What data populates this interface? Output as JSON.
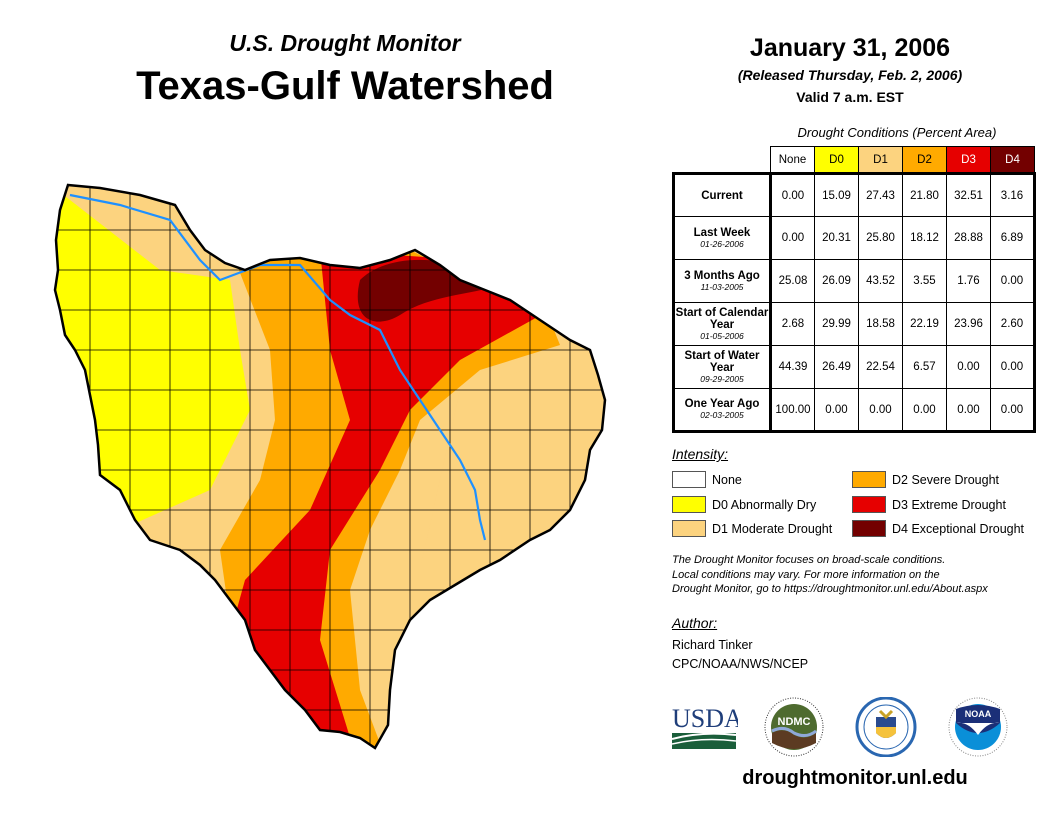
{
  "header": {
    "subtitle": "U.S. Drought Monitor",
    "title": "Texas-Gulf Watershed",
    "date": "January 31, 2006",
    "released": "(Released Thursday, Feb. 2, 2006)",
    "valid": "Valid 7 a.m. EST"
  },
  "table": {
    "caption": "Drought Conditions (Percent Area)",
    "columns": [
      {
        "label": "None",
        "color": "#ffffff",
        "text_color": "#000000"
      },
      {
        "label": "D0",
        "color": "#ffff00",
        "text_color": "#000000"
      },
      {
        "label": "D1",
        "color": "#fcd37f",
        "text_color": "#000000"
      },
      {
        "label": "D2",
        "color": "#ffaa00",
        "text_color": "#000000"
      },
      {
        "label": "D3",
        "color": "#e60000",
        "text_color": "#ffffff"
      },
      {
        "label": "D4",
        "color": "#730000",
        "text_color": "#ffffff"
      }
    ],
    "rows": [
      {
        "label": "Current",
        "date": "",
        "values": [
          "0.00",
          "15.09",
          "27.43",
          "21.80",
          "32.51",
          "3.16"
        ]
      },
      {
        "label": "Last Week",
        "date": "01-26-2006",
        "values": [
          "0.00",
          "20.31",
          "25.80",
          "18.12",
          "28.88",
          "6.89"
        ]
      },
      {
        "label": "3 Months Ago",
        "date": "11-03-2005",
        "values": [
          "25.08",
          "26.09",
          "43.52",
          "3.55",
          "1.76",
          "0.00"
        ]
      },
      {
        "label": "Start of Calendar Year",
        "date": "01-05-2006",
        "values": [
          "2.68",
          "29.99",
          "18.58",
          "22.19",
          "23.96",
          "2.60"
        ]
      },
      {
        "label": "Start of Water Year",
        "date": "09-29-2005",
        "values": [
          "44.39",
          "26.49",
          "22.54",
          "6.57",
          "0.00",
          "0.00"
        ]
      },
      {
        "label": "One Year Ago",
        "date": "02-03-2005",
        "values": [
          "100.00",
          "0.00",
          "0.00",
          "0.00",
          "0.00",
          "0.00"
        ]
      }
    ]
  },
  "legend": {
    "title": "Intensity:",
    "items": [
      {
        "label": "None",
        "color": "#ffffff"
      },
      {
        "label": "D0 Abnormally Dry",
        "color": "#ffff00"
      },
      {
        "label": "D1 Moderate Drought",
        "color": "#fcd37f"
      },
      {
        "label": "D2 Severe Drought",
        "color": "#ffaa00"
      },
      {
        "label": "D3 Extreme Drought",
        "color": "#e60000"
      },
      {
        "label": "D4 Exceptional Drought",
        "color": "#730000"
      }
    ]
  },
  "note": {
    "line1": "The Drought Monitor focuses on broad-scale conditions.",
    "line2": "Local conditions may vary. For more information on the",
    "line3": "Drought Monitor, go to https://droughtmonitor.unl.edu/About.aspx"
  },
  "author": {
    "title": "Author:",
    "name": "Richard Tinker",
    "org": "CPC/NOAA/NWS/NCEP"
  },
  "logos": [
    {
      "name": "USDA",
      "text": "USDA"
    },
    {
      "name": "NDMC",
      "text": "NDMC"
    },
    {
      "name": "Department of Commerce",
      "text": ""
    },
    {
      "name": "NOAA",
      "text": "NOAA"
    }
  ],
  "footer": {
    "url": "droughtmonitor.unl.edu"
  },
  "map": {
    "region": "Texas-Gulf Watershed",
    "river_color": "#1e90ff",
    "border_color": "#000000"
  }
}
